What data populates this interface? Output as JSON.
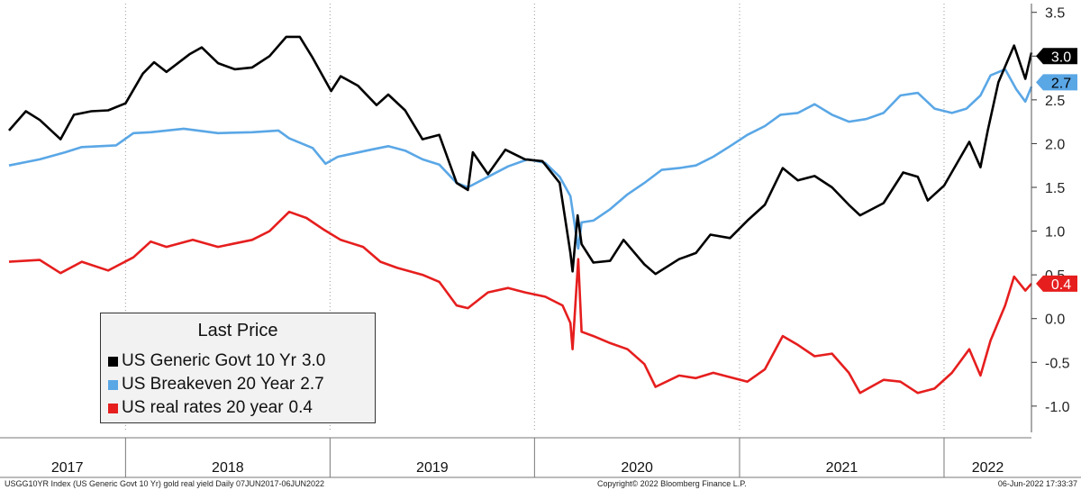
{
  "chart_data": {
    "type": "line",
    "title": "",
    "xlabel": "",
    "ylabel": "",
    "ylim": [
      -1.3,
      3.6
    ],
    "xlim": [
      "2017-06-07",
      "2022-06-06"
    ],
    "y_ticks": [
      "3.5",
      "3.0",
      "2.5",
      "2.0",
      "1.5",
      "1.0",
      "0.5",
      "0.0",
      "-0.5",
      "-1.0"
    ],
    "x_ticks": [
      "2017",
      "2018",
      "2019",
      "2020",
      "2021",
      "2022"
    ],
    "grid": "vertical dotted at year boundaries",
    "legend_position": "bottom-left",
    "series": [
      {
        "name": "US Generic Govt 10 Yr",
        "last": "3.0",
        "color": "#000000",
        "points": [
          [
            "2017-06-07",
            2.15
          ],
          [
            "2017-07-07",
            2.37
          ],
          [
            "2017-08-01",
            2.27
          ],
          [
            "2017-09-07",
            2.05
          ],
          [
            "2017-10-01",
            2.33
          ],
          [
            "2017-11-01",
            2.37
          ],
          [
            "2017-12-01",
            2.38
          ],
          [
            "2018-01-01",
            2.46
          ],
          [
            "2018-02-01",
            2.8
          ],
          [
            "2018-02-21",
            2.93
          ],
          [
            "2018-03-15",
            2.82
          ],
          [
            "2018-04-25",
            3.02
          ],
          [
            "2018-05-17",
            3.1
          ],
          [
            "2018-06-15",
            2.92
          ],
          [
            "2018-07-15",
            2.85
          ],
          [
            "2018-08-15",
            2.87
          ],
          [
            "2018-09-15",
            3.0
          ],
          [
            "2018-10-15",
            3.22
          ],
          [
            "2018-11-08",
            3.22
          ],
          [
            "2018-12-01",
            2.98
          ],
          [
            "2019-01-03",
            2.6
          ],
          [
            "2019-01-20",
            2.77
          ],
          [
            "2019-02-20",
            2.66
          ],
          [
            "2019-03-25",
            2.44
          ],
          [
            "2019-04-15",
            2.56
          ],
          [
            "2019-05-15",
            2.38
          ],
          [
            "2019-06-15",
            2.05
          ],
          [
            "2019-07-15",
            2.1
          ],
          [
            "2019-08-15",
            1.55
          ],
          [
            "2019-09-04",
            1.47
          ],
          [
            "2019-09-13",
            1.9
          ],
          [
            "2019-10-10",
            1.65
          ],
          [
            "2019-11-10",
            1.93
          ],
          [
            "2019-12-15",
            1.82
          ],
          [
            "2020-01-15",
            1.8
          ],
          [
            "2020-02-15",
            1.55
          ],
          [
            "2020-03-05",
            0.75
          ],
          [
            "2020-03-09",
            0.54
          ],
          [
            "2020-03-18",
            1.18
          ],
          [
            "2020-03-25",
            0.85
          ],
          [
            "2020-04-15",
            0.64
          ],
          [
            "2020-05-15",
            0.66
          ],
          [
            "2020-06-08",
            0.9
          ],
          [
            "2020-07-15",
            0.62
          ],
          [
            "2020-08-04",
            0.51
          ],
          [
            "2020-09-15",
            0.68
          ],
          [
            "2020-10-15",
            0.75
          ],
          [
            "2020-11-10",
            0.96
          ],
          [
            "2020-12-15",
            0.92
          ],
          [
            "2021-01-15",
            1.12
          ],
          [
            "2021-02-15",
            1.3
          ],
          [
            "2021-03-19",
            1.72
          ],
          [
            "2021-04-15",
            1.58
          ],
          [
            "2021-05-15",
            1.63
          ],
          [
            "2021-06-15",
            1.5
          ],
          [
            "2021-07-15",
            1.3
          ],
          [
            "2021-08-04",
            1.18
          ],
          [
            "2021-09-15",
            1.32
          ],
          [
            "2021-10-20",
            1.67
          ],
          [
            "2021-11-15",
            1.62
          ],
          [
            "2021-12-03",
            1.35
          ],
          [
            "2022-01-01",
            1.52
          ],
          [
            "2022-02-15",
            2.02
          ],
          [
            "2022-03-07",
            1.73
          ],
          [
            "2022-03-20",
            2.15
          ],
          [
            "2022-04-08",
            2.7
          ],
          [
            "2022-05-06",
            3.12
          ],
          [
            "2022-05-26",
            2.74
          ],
          [
            "2022-06-06",
            3.04
          ]
        ]
      },
      {
        "name": "US Breakeven 20 Year",
        "last": "2.7",
        "color": "#5aa7e6",
        "points": [
          [
            "2017-06-07",
            1.75
          ],
          [
            "2017-08-01",
            1.82
          ],
          [
            "2017-09-15",
            1.9
          ],
          [
            "2017-10-15",
            1.96
          ],
          [
            "2017-12-15",
            1.98
          ],
          [
            "2018-01-15",
            2.12
          ],
          [
            "2018-02-15",
            2.13
          ],
          [
            "2018-04-15",
            2.17
          ],
          [
            "2018-06-15",
            2.12
          ],
          [
            "2018-08-15",
            2.13
          ],
          [
            "2018-10-01",
            2.15
          ],
          [
            "2018-10-20",
            2.06
          ],
          [
            "2018-12-01",
            1.95
          ],
          [
            "2018-12-24",
            1.77
          ],
          [
            "2019-01-15",
            1.85
          ],
          [
            "2019-03-15",
            1.93
          ],
          [
            "2019-04-15",
            1.97
          ],
          [
            "2019-05-15",
            1.92
          ],
          [
            "2019-06-15",
            1.82
          ],
          [
            "2019-07-15",
            1.76
          ],
          [
            "2019-08-15",
            1.55
          ],
          [
            "2019-09-04",
            1.5
          ],
          [
            "2019-10-10",
            1.62
          ],
          [
            "2019-11-15",
            1.74
          ],
          [
            "2019-12-20",
            1.82
          ],
          [
            "2020-01-20",
            1.78
          ],
          [
            "2020-02-15",
            1.62
          ],
          [
            "2020-03-05",
            1.4
          ],
          [
            "2020-03-19",
            0.8
          ],
          [
            "2020-03-25",
            1.1
          ],
          [
            "2020-04-15",
            1.12
          ],
          [
            "2020-05-15",
            1.25
          ],
          [
            "2020-06-15",
            1.42
          ],
          [
            "2020-07-15",
            1.55
          ],
          [
            "2020-08-15",
            1.7
          ],
          [
            "2020-09-15",
            1.72
          ],
          [
            "2020-10-15",
            1.75
          ],
          [
            "2020-11-15",
            1.85
          ],
          [
            "2020-12-15",
            1.97
          ],
          [
            "2021-01-15",
            2.1
          ],
          [
            "2021-02-15",
            2.2
          ],
          [
            "2021-03-15",
            2.33
          ],
          [
            "2021-04-15",
            2.35
          ],
          [
            "2021-05-15",
            2.45
          ],
          [
            "2021-06-15",
            2.33
          ],
          [
            "2021-07-15",
            2.25
          ],
          [
            "2021-08-15",
            2.28
          ],
          [
            "2021-09-15",
            2.35
          ],
          [
            "2021-10-15",
            2.55
          ],
          [
            "2021-11-15",
            2.58
          ],
          [
            "2021-12-15",
            2.4
          ],
          [
            "2022-01-15",
            2.35
          ],
          [
            "2022-02-10",
            2.4
          ],
          [
            "2022-03-07",
            2.55
          ],
          [
            "2022-03-25",
            2.78
          ],
          [
            "2022-04-20",
            2.85
          ],
          [
            "2022-05-10",
            2.62
          ],
          [
            "2022-05-26",
            2.48
          ],
          [
            "2022-06-06",
            2.65
          ]
        ]
      },
      {
        "name": "US real rates 20 year",
        "last": "0.4",
        "color": "#e61e1e",
        "points": [
          [
            "2017-06-07",
            0.65
          ],
          [
            "2017-08-01",
            0.67
          ],
          [
            "2017-09-07",
            0.52
          ],
          [
            "2017-10-15",
            0.65
          ],
          [
            "2017-12-01",
            0.55
          ],
          [
            "2018-01-15",
            0.7
          ],
          [
            "2018-02-15",
            0.88
          ],
          [
            "2018-03-15",
            0.82
          ],
          [
            "2018-05-01",
            0.9
          ],
          [
            "2018-06-15",
            0.82
          ],
          [
            "2018-08-15",
            0.9
          ],
          [
            "2018-09-15",
            1.0
          ],
          [
            "2018-10-20",
            1.22
          ],
          [
            "2018-11-20",
            1.15
          ],
          [
            "2018-12-20",
            1.02
          ],
          [
            "2019-01-20",
            0.9
          ],
          [
            "2019-03-01",
            0.82
          ],
          [
            "2019-04-01",
            0.65
          ],
          [
            "2019-05-01",
            0.58
          ],
          [
            "2019-06-15",
            0.5
          ],
          [
            "2019-07-15",
            0.42
          ],
          [
            "2019-08-15",
            0.15
          ],
          [
            "2019-09-04",
            0.12
          ],
          [
            "2019-10-10",
            0.3
          ],
          [
            "2019-11-15",
            0.35
          ],
          [
            "2019-12-15",
            0.3
          ],
          [
            "2020-01-20",
            0.25
          ],
          [
            "2020-02-20",
            0.15
          ],
          [
            "2020-03-05",
            -0.05
          ],
          [
            "2020-03-09",
            -0.35
          ],
          [
            "2020-03-19",
            0.68
          ],
          [
            "2020-03-25",
            -0.15
          ],
          [
            "2020-04-15",
            -0.2
          ],
          [
            "2020-05-15",
            -0.28
          ],
          [
            "2020-06-15",
            -0.35
          ],
          [
            "2020-07-15",
            -0.52
          ],
          [
            "2020-08-04",
            -0.78
          ],
          [
            "2020-09-15",
            -0.65
          ],
          [
            "2020-10-15",
            -0.68
          ],
          [
            "2020-11-15",
            -0.62
          ],
          [
            "2020-12-15",
            -0.67
          ],
          [
            "2021-01-15",
            -0.72
          ],
          [
            "2021-02-15",
            -0.58
          ],
          [
            "2021-03-19",
            -0.2
          ],
          [
            "2021-04-15",
            -0.3
          ],
          [
            "2021-05-15",
            -0.43
          ],
          [
            "2021-06-15",
            -0.4
          ],
          [
            "2021-07-15",
            -0.62
          ],
          [
            "2021-08-04",
            -0.85
          ],
          [
            "2021-09-15",
            -0.7
          ],
          [
            "2021-10-15",
            -0.72
          ],
          [
            "2021-11-15",
            -0.85
          ],
          [
            "2021-12-15",
            -0.8
          ],
          [
            "2022-01-15",
            -0.62
          ],
          [
            "2022-02-15",
            -0.35
          ],
          [
            "2022-03-07",
            -0.65
          ],
          [
            "2022-03-25",
            -0.25
          ],
          [
            "2022-04-20",
            0.15
          ],
          [
            "2022-05-06",
            0.48
          ],
          [
            "2022-05-26",
            0.32
          ],
          [
            "2022-06-06",
            0.4
          ]
        ]
      }
    ]
  },
  "legend": {
    "title": "Last Price",
    "items": [
      {
        "name": "US Generic Govt 10 Yr",
        "value": "3.0",
        "color": "#000000"
      },
      {
        "name": "US Breakeven 20 Year",
        "value": "2.7",
        "color": "#5aa7e6"
      },
      {
        "name": "US real rates 20 year",
        "value": "0.4",
        "color": "#e61e1e"
      }
    ]
  },
  "footer": {
    "left": "USGG10YR Index (US Generic Govt 10 Yr) gold real yield  Daily 07JUN2017-06JUN2022",
    "center": "Copyright© 2022 Bloomberg Finance L.P.",
    "right": "06-Jun-2022 17:33:37"
  }
}
